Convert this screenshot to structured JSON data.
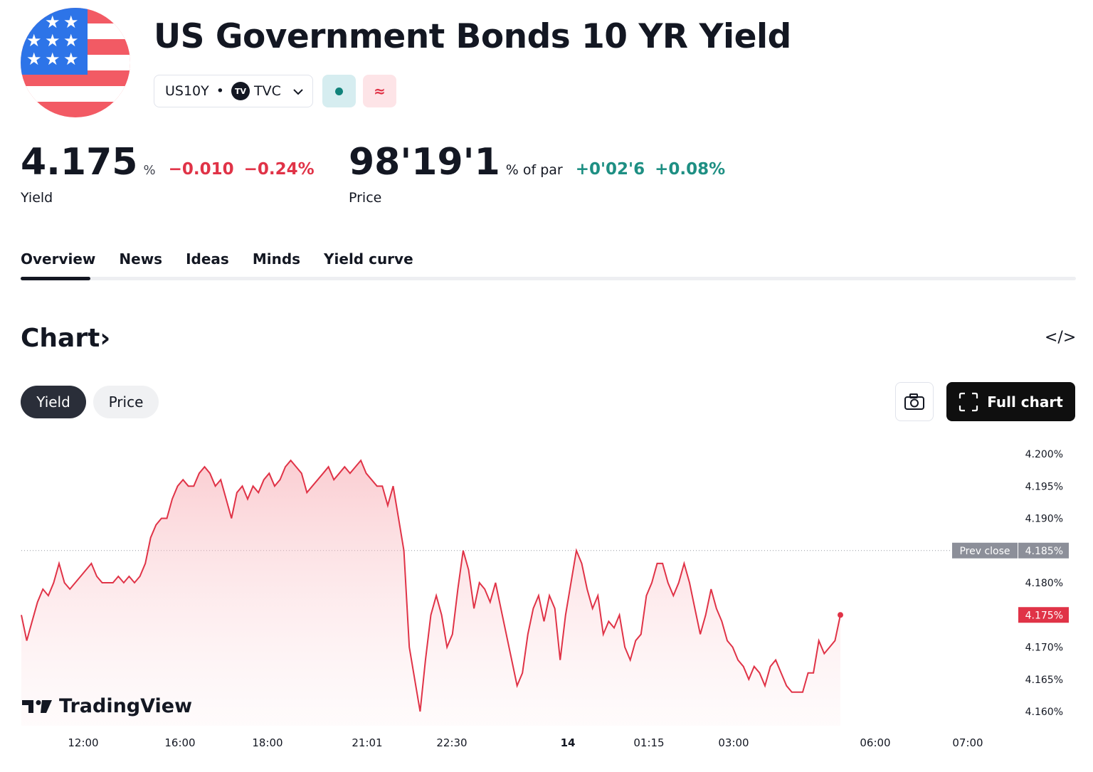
{
  "header": {
    "title": "US Government Bonds 10 YR Yield",
    "symbol": "US10Y",
    "separator": "•",
    "exchange": "TVC",
    "exchange_badge": "TV",
    "market_status_icon": "dot-icon",
    "delayed_icon": "approx-icon",
    "colors": {
      "status_bg": "#d6edf0",
      "status_dot": "#11827a",
      "delayed_bg": "#fde4e7",
      "delayed_fg": "#e03347"
    }
  },
  "quote": {
    "yield_value": "4.175",
    "yield_unit": "%",
    "yield_change": "−0.010",
    "yield_change_pct": "−0.24%",
    "yield_label": "Yield",
    "price_value": "98'19'1",
    "price_unit": "% of par",
    "price_change": "+0'02'6",
    "price_change_pct": "+0.08%",
    "price_label": "Price",
    "colors": {
      "down": "#e03347",
      "up": "#1e8f83"
    }
  },
  "tabs": [
    {
      "label": "Overview",
      "active": true
    },
    {
      "label": "News",
      "active": false
    },
    {
      "label": "Ideas",
      "active": false
    },
    {
      "label": "Minds",
      "active": false
    },
    {
      "label": "Yield curve",
      "active": false
    }
  ],
  "chart_section": {
    "heading": "Chart",
    "heading_arrow": "›",
    "embed_icon": "</>",
    "toggle": [
      {
        "label": "Yield",
        "active": true
      },
      {
        "label": "Price",
        "active": false
      }
    ],
    "snapshot_icon": "camera-icon",
    "full_chart_label": "Full chart",
    "brand": "TradingView"
  },
  "chart_data": {
    "type": "area",
    "x_ticks": [
      "12:00",
      "16:00",
      "18:00",
      "21:01",
      "22:30",
      "14",
      "01:15",
      "03:00",
      "06:00",
      "07:00"
    ],
    "y_ticks": [
      "4.200%",
      "4.195%",
      "4.190%",
      "4.185%",
      "4.180%",
      "4.175%",
      "4.170%",
      "4.165%",
      "4.160%"
    ],
    "ylim": [
      4.158,
      4.201
    ],
    "prev_close_label": "Prev close",
    "prev_close_value": "4.185%",
    "prev_close": 4.185,
    "last_label": "4.175%",
    "last": 4.175,
    "line_color": "#e03347",
    "series": [
      {
        "values": [
          4.175,
          4.171,
          4.174,
          4.177,
          4.179,
          4.178,
          4.18,
          4.183,
          4.18,
          4.179,
          4.18,
          4.181,
          4.182,
          4.183,
          4.181,
          4.18,
          4.18,
          4.18,
          4.181,
          4.18,
          4.181,
          4.18,
          4.181,
          4.183,
          4.187,
          4.189,
          4.19,
          4.19,
          4.193,
          4.195,
          4.196,
          4.195,
          4.195,
          4.197,
          4.198,
          4.197,
          4.195,
          4.196,
          4.193,
          4.19,
          4.194,
          4.195,
          4.193,
          4.195,
          4.194,
          4.196,
          4.197,
          4.195,
          4.196,
          4.198,
          4.199,
          4.198,
          4.197,
          4.194,
          4.195,
          4.196,
          4.197,
          4.198,
          4.196,
          4.197,
          4.198,
          4.197,
          4.198,
          4.199,
          4.197,
          4.196,
          4.195,
          4.195,
          4.192,
          4.195,
          4.19,
          4.185,
          4.17,
          4.165,
          4.16,
          4.168,
          4.175,
          4.178,
          4.175,
          4.17,
          4.172,
          4.179,
          4.185,
          4.182,
          4.176,
          4.18,
          4.179,
          4.177,
          4.18,
          4.176,
          4.172,
          4.168,
          4.164,
          4.166,
          4.172,
          4.176,
          4.178,
          4.174,
          4.178,
          4.176,
          4.168,
          4.175,
          4.18,
          4.185,
          4.183,
          4.179,
          4.176,
          4.178,
          4.172,
          4.174,
          4.173,
          4.175,
          4.17,
          4.168,
          4.171,
          4.172,
          4.178,
          4.18,
          4.183,
          4.183,
          4.18,
          4.178,
          4.18,
          4.183,
          4.18,
          4.176,
          4.172,
          4.175,
          4.179,
          4.176,
          4.174,
          4.171,
          4.17,
          4.168,
          4.167,
          4.165,
          4.167,
          4.166,
          4.164,
          4.167,
          4.168,
          4.166,
          4.164,
          4.163,
          4.163,
          4.163,
          4.166,
          4.166,
          4.171,
          4.169,
          4.17,
          4.171,
          4.175
        ]
      }
    ]
  }
}
